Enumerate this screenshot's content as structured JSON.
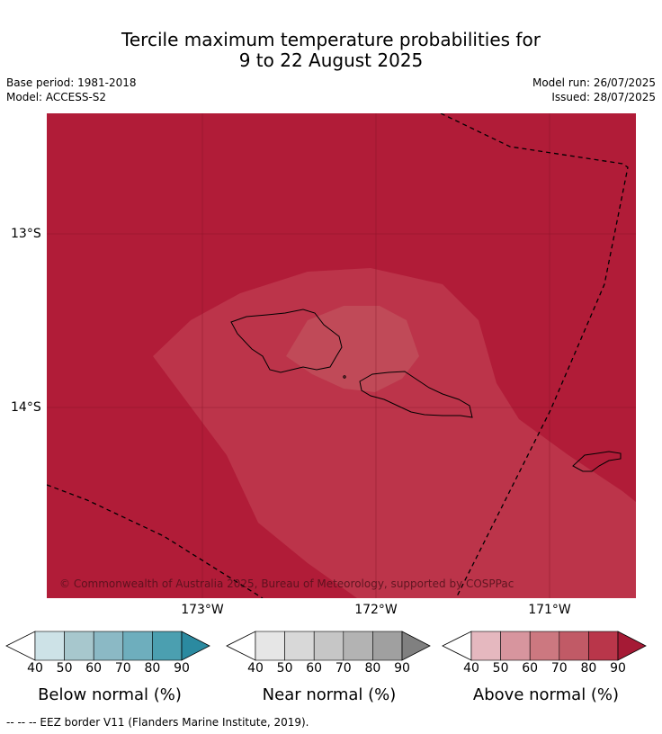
{
  "title_line1": "Tercile maximum temperature probabilities for",
  "title_line2": "9 to 22 August 2025",
  "base_period": "Base period: 1981-2018",
  "model": "Model: ACCESS-S2",
  "model_run": "Model run: 26/07/2025",
  "issued": "Issued: 28/07/2025",
  "lat_labels": [
    "13°S",
    "14°S"
  ],
  "lon_labels": [
    "173°W",
    "172°W",
    "171°W"
  ],
  "copyright": "© Commonwealth of Australia 2025, Bureau of Meteorology, supported by COSPPac",
  "colorbars": [
    {
      "title": "Below normal (%)",
      "ticks": [
        "40",
        "50",
        "60",
        "70",
        "80",
        "90"
      ],
      "colors": [
        "#ffffff",
        "#cde2e7",
        "#a7c7cd",
        "#8bb9c5",
        "#6eaebd",
        "#4b9fb0",
        "#2b8aa0"
      ]
    },
    {
      "title": "Near normal (%)",
      "ticks": [
        "40",
        "50",
        "60",
        "70",
        "80",
        "90"
      ],
      "colors": [
        "#ffffff",
        "#e6e6e6",
        "#d8d8d8",
        "#c6c6c6",
        "#b3b3b3",
        "#a0a0a0",
        "#808080"
      ]
    },
    {
      "title": "Above normal (%)",
      "ticks": [
        "40",
        "50",
        "60",
        "70",
        "80",
        "90"
      ],
      "colors": [
        "#ffffff",
        "#e5b8bf",
        "#d7959e",
        "#cc7880",
        "#c15a66",
        "#b9364a",
        "#a51a35"
      ]
    }
  ],
  "legend_note": "--  --  -- EEZ border V11 (Flanders Marine Institute, 2019).",
  "map_colors": {
    "above_90": "#b11c38",
    "above_80": "#bc344a",
    "above_70": "#c04a58"
  }
}
